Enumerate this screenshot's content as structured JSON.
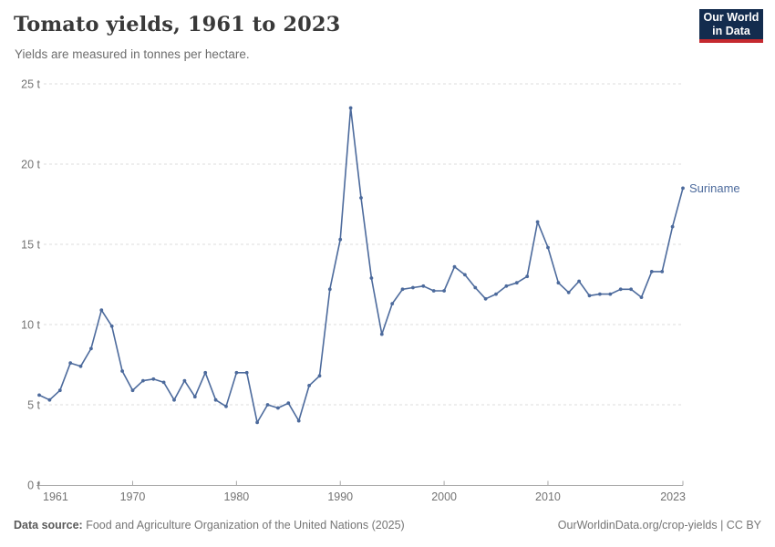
{
  "header": {
    "title": "Tomato yields, 1961 to 2023",
    "subtitle": "Yields are measured in tonnes per hectare.",
    "logo_line1": "Our World",
    "logo_line2": "in Data"
  },
  "colors": {
    "line": "#4C6A9C",
    "logo-bg": "#132c4e",
    "logo-red": "#c5292f"
  },
  "chart_data": {
    "type": "line",
    "title": "Tomato yields, 1961 to 2023",
    "unit": "tonnes per hectare",
    "entity_label": "Suriname",
    "line_color": "#4C6A9C",
    "xlim": [
      1961,
      2023
    ],
    "ylim": [
      0,
      25
    ],
    "x_ticks": [
      1961,
      1970,
      1980,
      1990,
      2000,
      2010,
      2023
    ],
    "y_ticks": [
      0,
      5,
      10,
      15,
      20,
      25
    ],
    "y_tick_suffix": " t",
    "grid": "horizontal-dashed",
    "legend_position": "end-of-line-label",
    "years": [
      1961,
      1962,
      1963,
      1964,
      1965,
      1966,
      1967,
      1968,
      1969,
      1970,
      1971,
      1972,
      1973,
      1974,
      1975,
      1976,
      1977,
      1978,
      1979,
      1980,
      1981,
      1982,
      1983,
      1984,
      1985,
      1986,
      1987,
      1988,
      1989,
      1990,
      1991,
      1992,
      1993,
      1994,
      1995,
      1996,
      1997,
      1998,
      1999,
      2000,
      2001,
      2002,
      2003,
      2004,
      2005,
      2006,
      2007,
      2008,
      2009,
      2010,
      2011,
      2012,
      2013,
      2014,
      2015,
      2016,
      2017,
      2018,
      2019,
      2020,
      2021,
      2022,
      2023
    ],
    "values": [
      5.6,
      5.3,
      5.9,
      7.6,
      7.4,
      8.5,
      10.9,
      9.9,
      7.1,
      5.9,
      6.5,
      6.6,
      6.4,
      5.3,
      6.5,
      5.5,
      7.0,
      5.3,
      4.9,
      7.0,
      7.0,
      3.9,
      5.0,
      4.8,
      5.1,
      4.0,
      6.2,
      6.8,
      12.2,
      15.3,
      23.5,
      17.9,
      12.9,
      9.4,
      11.3,
      12.2,
      12.3,
      12.4,
      12.1,
      12.1,
      13.6,
      13.1,
      12.3,
      11.6,
      11.9,
      12.4,
      12.6,
      13.0,
      16.4,
      14.8,
      12.6,
      12.0,
      12.7,
      11.8,
      11.9,
      11.9,
      12.2,
      12.2,
      11.7,
      13.3,
      13.3,
      16.1,
      18.5
    ]
  },
  "footer": {
    "source_bold": "Data source:",
    "source_rest": " Food and Agriculture Organization of the United Nations (2025)",
    "link": "OurWorldinData.org/crop-yields | CC BY"
  }
}
